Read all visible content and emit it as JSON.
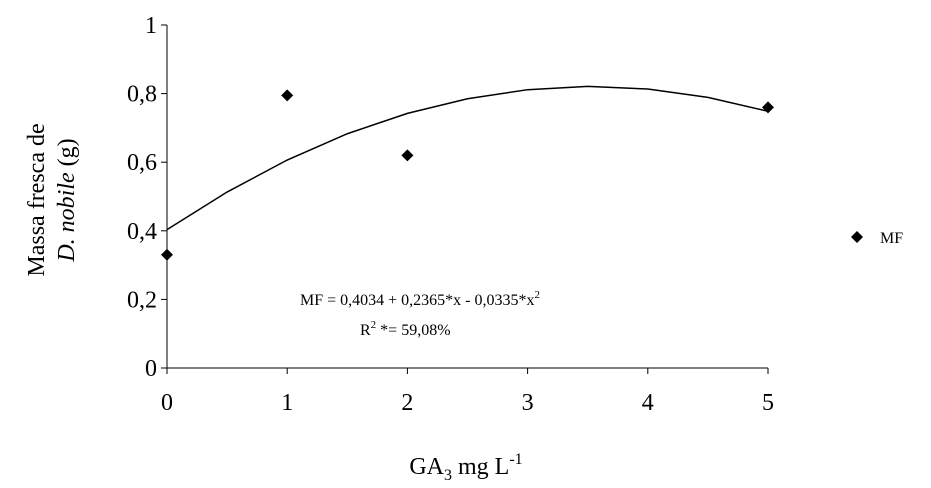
{
  "chart_data": {
    "type": "scatter",
    "x_label": {
      "main": "GA",
      "sub": "3",
      "unit": " mg L",
      "sup": "-1"
    },
    "y_label": {
      "line1": "Massa  fresca de",
      "italic": "D. nobile",
      "rest": " (g)"
    },
    "annotation": {
      "equation": "MF =  0,4034 + 0,2365*x - 0,0335*x",
      "equation_sup": "2",
      "r_main": "R",
      "r_sup": "2",
      "r_rest": " *= 59,08%"
    },
    "x": [
      0,
      1,
      2,
      5
    ],
    "series": [
      {
        "name": "MF",
        "color": "#000000",
        "values": [
          0.33,
          0.795,
          0.62,
          0.76
        ]
      }
    ],
    "fit": {
      "x": [
        0,
        0.5,
        1,
        1.5,
        2,
        2.5,
        3,
        3.5,
        4,
        4.5,
        5
      ],
      "values": [
        0.4034,
        0.513,
        0.6064,
        0.683,
        0.7424,
        0.785,
        0.8114,
        0.821,
        0.8134,
        0.789,
        0.7484
      ],
      "color": "#000000"
    },
    "xlim": [
      0,
      5
    ],
    "xticks": [
      0,
      1,
      2,
      3,
      4,
      5
    ],
    "ylim": [
      0,
      1
    ],
    "yticks": [
      0,
      {
        "value": 0.2,
        "label": "0,2"
      },
      {
        "value": 0.4,
        "label": "0,4"
      },
      {
        "value": 0.6,
        "label": "0,6"
      },
      {
        "value": 0.8,
        "label": "0,8"
      },
      1
    ],
    "grid": false,
    "legend": "right"
  }
}
